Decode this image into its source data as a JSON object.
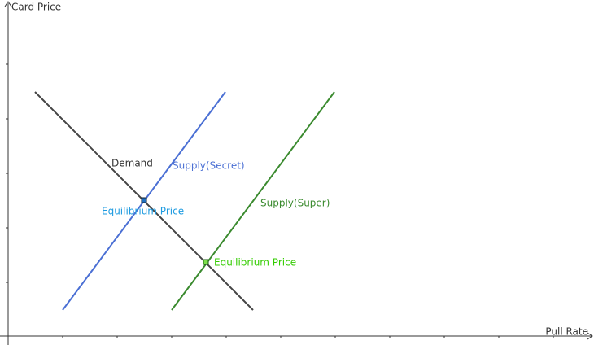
{
  "axes": {
    "x_label": "Pull Rate",
    "y_label": "Card Price"
  },
  "curves": [
    {
      "label": "Demand"
    },
    {
      "label": "Supply(Secret)"
    },
    {
      "label": "Supply(Super)"
    }
  ],
  "points": [
    {
      "label": "Equilibrium Price"
    },
    {
      "label": "Equilibrium Price"
    }
  ]
}
